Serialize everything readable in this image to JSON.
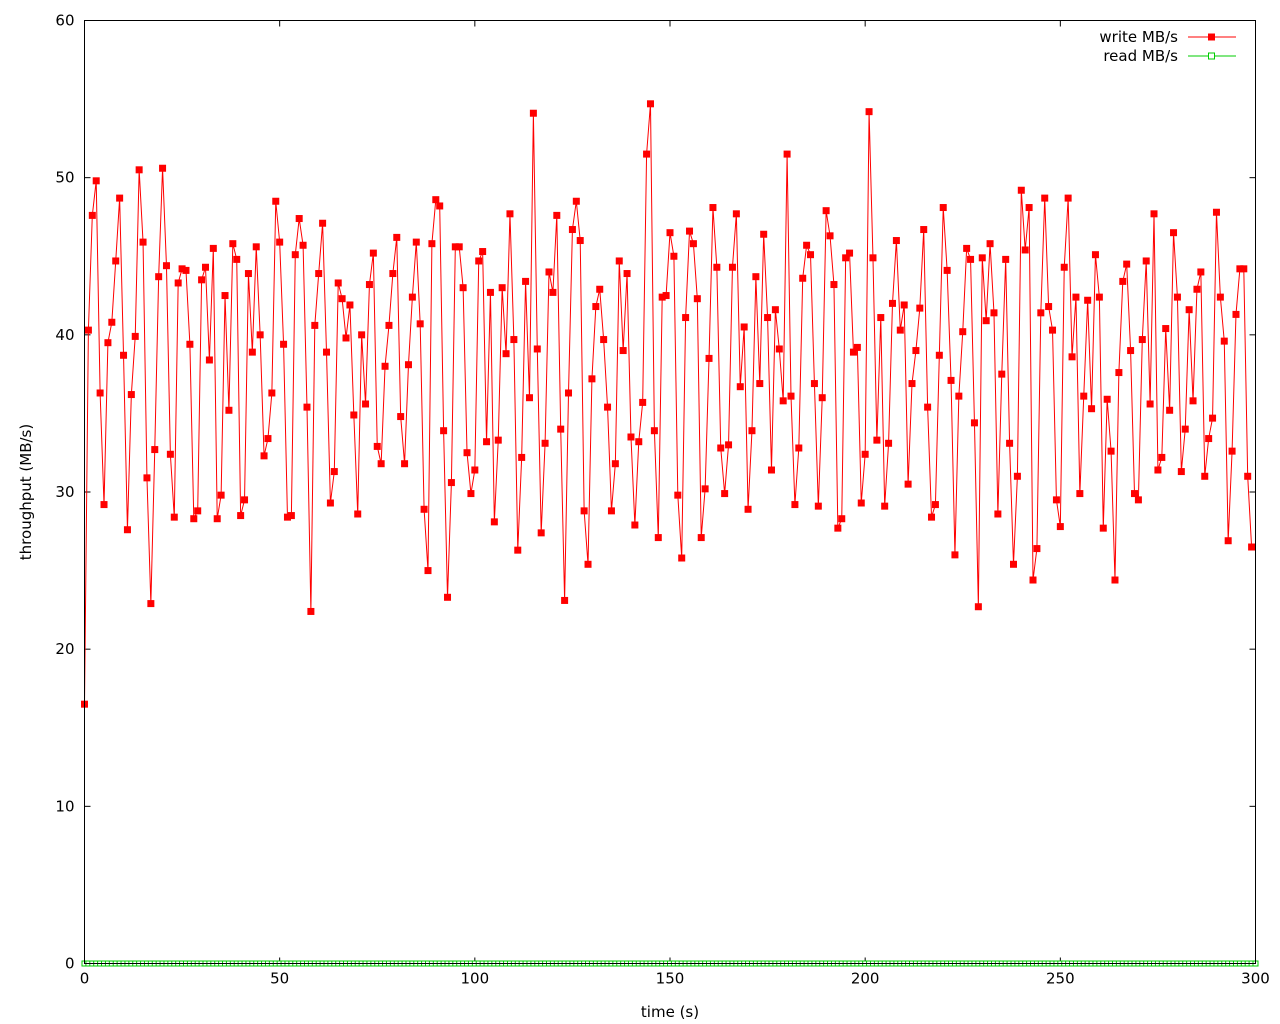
{
  "chart_data": {
    "type": "line",
    "title": "",
    "xlabel": "time (s)",
    "ylabel": "throughput (MB/s)",
    "xlim": [
      0,
      300
    ],
    "ylim": [
      0,
      60
    ],
    "x_ticks": [
      "0",
      "50",
      "100",
      "150",
      "200",
      "250",
      "300"
    ],
    "y_ticks": [
      "0",
      "10",
      "20",
      "30",
      "40",
      "50",
      "60"
    ],
    "grid": false,
    "legend_position": "top-right",
    "series": [
      {
        "name": "write MB/s",
        "color": "#ff0000",
        "marker": "filled-square",
        "values": [
          16.5,
          40.3,
          47.6,
          49.8,
          36.3,
          29.2,
          39.5,
          40.8,
          44.7,
          48.7,
          38.7,
          27.6,
          36.2,
          39.9,
          50.5,
          45.9,
          30.9,
          22.9,
          32.7,
          43.7,
          50.6,
          44.4,
          32.4,
          28.4,
          43.3,
          44.2,
          44.1,
          39.4,
          28.3,
          28.8,
          43.5,
          44.3,
          38.4,
          45.5,
          28.3,
          29.8,
          42.5,
          35.2,
          45.8,
          44.8,
          28.5,
          29.5,
          43.9,
          38.9,
          45.6,
          40.0,
          32.3,
          33.4,
          36.3,
          48.5,
          45.9,
          39.4,
          28.4,
          28.5,
          45.1,
          47.4,
          45.7,
          35.4,
          22.4,
          40.6,
          43.9,
          47.1,
          38.9,
          29.3,
          31.3,
          43.3,
          42.3,
          39.8,
          41.9,
          34.9,
          28.6,
          40.0,
          35.6,
          43.2,
          45.2,
          32.9,
          31.8,
          38.0,
          40.6,
          43.9,
          46.2,
          34.8,
          31.8,
          38.1,
          42.4,
          45.9,
          40.7,
          28.9,
          25.0,
          45.8,
          48.6,
          48.2,
          33.9,
          23.3,
          30.6,
          45.6,
          45.6,
          43.0,
          32.5,
          29.9,
          31.4,
          44.7,
          45.3,
          33.2,
          42.7,
          28.1,
          33.3,
          43.0,
          38.8,
          47.7,
          39.7,
          26.3,
          32.2,
          43.4,
          36.0,
          54.1,
          39.1,
          27.4,
          33.1,
          44.0,
          42.7,
          47.6,
          34.0,
          23.1,
          36.3,
          46.7,
          48.5,
          46.0,
          28.8,
          25.4,
          37.2,
          41.8,
          42.9,
          39.7,
          35.4,
          28.8,
          31.8,
          44.7,
          39.0,
          43.9,
          33.5,
          27.9,
          33.2,
          35.7,
          51.5,
          54.7,
          33.9,
          27.1,
          42.4,
          42.5,
          46.5,
          45.0,
          29.8,
          25.8,
          41.1,
          46.6,
          45.8,
          42.3,
          27.1,
          30.2,
          38.5,
          48.1,
          44.3,
          32.8,
          29.9,
          33.0,
          44.3,
          47.7,
          36.7,
          40.5,
          28.9,
          33.9,
          43.7,
          36.9,
          46.4,
          41.1,
          31.4,
          41.6,
          39.1,
          35.8,
          51.5,
          36.1,
          29.2,
          32.8,
          43.6,
          45.7,
          45.1,
          36.9,
          29.1,
          36.0,
          47.9,
          46.3,
          43.2,
          27.7,
          28.3,
          44.9,
          45.2,
          38.9,
          39.2,
          29.3,
          32.4,
          54.2,
          44.9,
          33.3,
          41.1,
          29.1,
          33.1,
          42.0,
          46.0,
          40.3,
          41.9,
          30.5,
          36.9,
          39.0,
          41.7,
          46.7,
          35.4,
          28.4,
          29.2,
          38.7,
          48.1,
          44.1,
          37.1,
          26.0,
          36.1,
          40.2,
          45.5,
          44.8,
          34.4,
          22.7,
          44.9,
          40.9,
          45.8,
          41.4,
          28.6,
          37.5,
          44.8,
          33.1,
          25.4,
          31.0,
          49.2,
          45.4,
          48.1,
          24.4,
          26.4,
          41.4,
          48.7,
          41.8,
          40.3,
          29.5,
          27.8,
          44.3,
          48.7,
          38.6,
          42.4,
          29.9,
          36.1,
          42.2,
          35.3,
          45.1,
          42.4,
          27.7,
          35.9,
          32.6,
          24.4,
          37.6,
          43.4,
          44.5,
          39.0,
          29.9,
          29.5,
          39.7,
          44.7,
          35.6,
          47.7,
          31.4,
          32.2,
          40.4,
          35.2,
          46.5,
          42.4,
          31.3,
          34.0,
          41.6,
          35.8,
          42.9,
          44.0,
          31.0,
          33.4,
          34.7,
          47.8,
          42.4,
          39.6,
          26.9,
          32.6,
          41.3,
          44.2,
          44.2,
          31.0,
          26.5
        ]
      },
      {
        "name": "read MB/s",
        "color": "#00cc00",
        "marker": "hollow-square",
        "constant_value": 0
      }
    ]
  }
}
